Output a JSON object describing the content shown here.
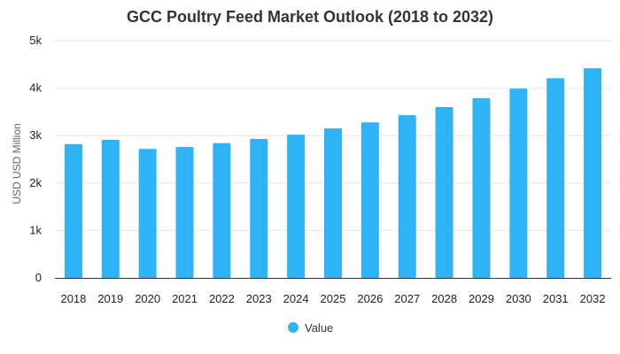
{
  "chart_data": {
    "type": "bar",
    "title": "GCC Poultry Feed Market Outlook (2018 to 2032)",
    "xlabel": "",
    "ylabel": "USD USD Million",
    "categories": [
      "2018",
      "2019",
      "2020",
      "2021",
      "2022",
      "2023",
      "2024",
      "2025",
      "2026",
      "2027",
      "2028",
      "2029",
      "2030",
      "2031",
      "2032"
    ],
    "series": [
      {
        "name": "Value",
        "color": "#2eb3f7",
        "values": [
          2820,
          2910,
          2720,
          2760,
          2840,
          2930,
          3020,
          3150,
          3280,
          3430,
          3600,
          3790,
          3990,
          4210,
          4420
        ]
      }
    ],
    "ylim": [
      0,
      5000
    ],
    "yticks": [
      {
        "value": 0,
        "label": "0"
      },
      {
        "value": 1000,
        "label": "1k"
      },
      {
        "value": 2000,
        "label": "2k"
      },
      {
        "value": 3000,
        "label": "3k"
      },
      {
        "value": 4000,
        "label": "4k"
      },
      {
        "value": 5000,
        "label": "5k"
      }
    ],
    "grid": true,
    "legend_position": "bottom"
  }
}
